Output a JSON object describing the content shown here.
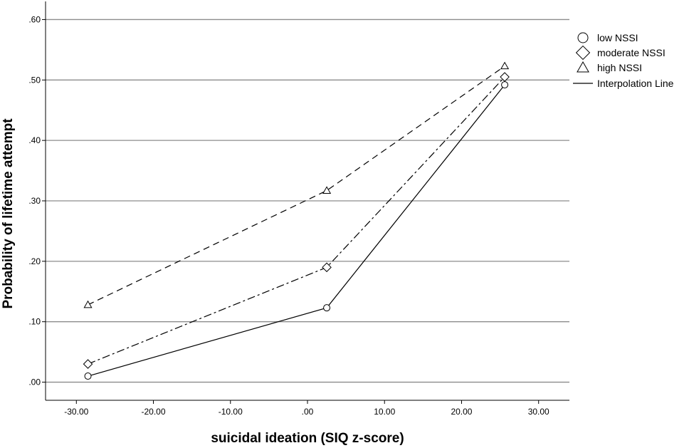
{
  "chart_data": {
    "type": "line",
    "title": "",
    "xlabel": "suicidal ideation (SIQ z-score)",
    "ylabel": "Probability of lifetime attempt",
    "xlim": [
      -34,
      34
    ],
    "ylim": [
      -0.03,
      0.63
    ],
    "x_ticks": [
      -30,
      -20,
      -10,
      0,
      10,
      20,
      30
    ],
    "x_tick_labels": [
      "-30.00",
      "-20.00",
      "-10.00",
      ".00",
      "10.00",
      "20.00",
      "30.00"
    ],
    "y_ticks": [
      0,
      0.1,
      0.2,
      0.3,
      0.4,
      0.5,
      0.6
    ],
    "y_tick_labels": [
      ".00",
      ".10",
      ".20",
      ".30",
      ".40",
      ".50",
      ".60"
    ],
    "grid": "horizontal",
    "legend_position": "top-right",
    "series": [
      {
        "name": "low NSSI",
        "marker": "circle",
        "dash": "solid",
        "x": [
          -28.5,
          2.5,
          25.6
        ],
        "y": [
          0.01,
          0.123,
          0.492
        ]
      },
      {
        "name": "moderate NSSI",
        "marker": "diamond",
        "dash": "dashdot",
        "x": [
          -28.5,
          2.5,
          25.6
        ],
        "y": [
          0.03,
          0.19,
          0.505
        ]
      },
      {
        "name": "high NSSI",
        "marker": "triangle",
        "dash": "dashed",
        "x": [
          -28.5,
          2.5,
          25.6
        ],
        "y": [
          0.128,
          0.317,
          0.523
        ]
      }
    ],
    "legend_extra": "Interpolation Line"
  }
}
